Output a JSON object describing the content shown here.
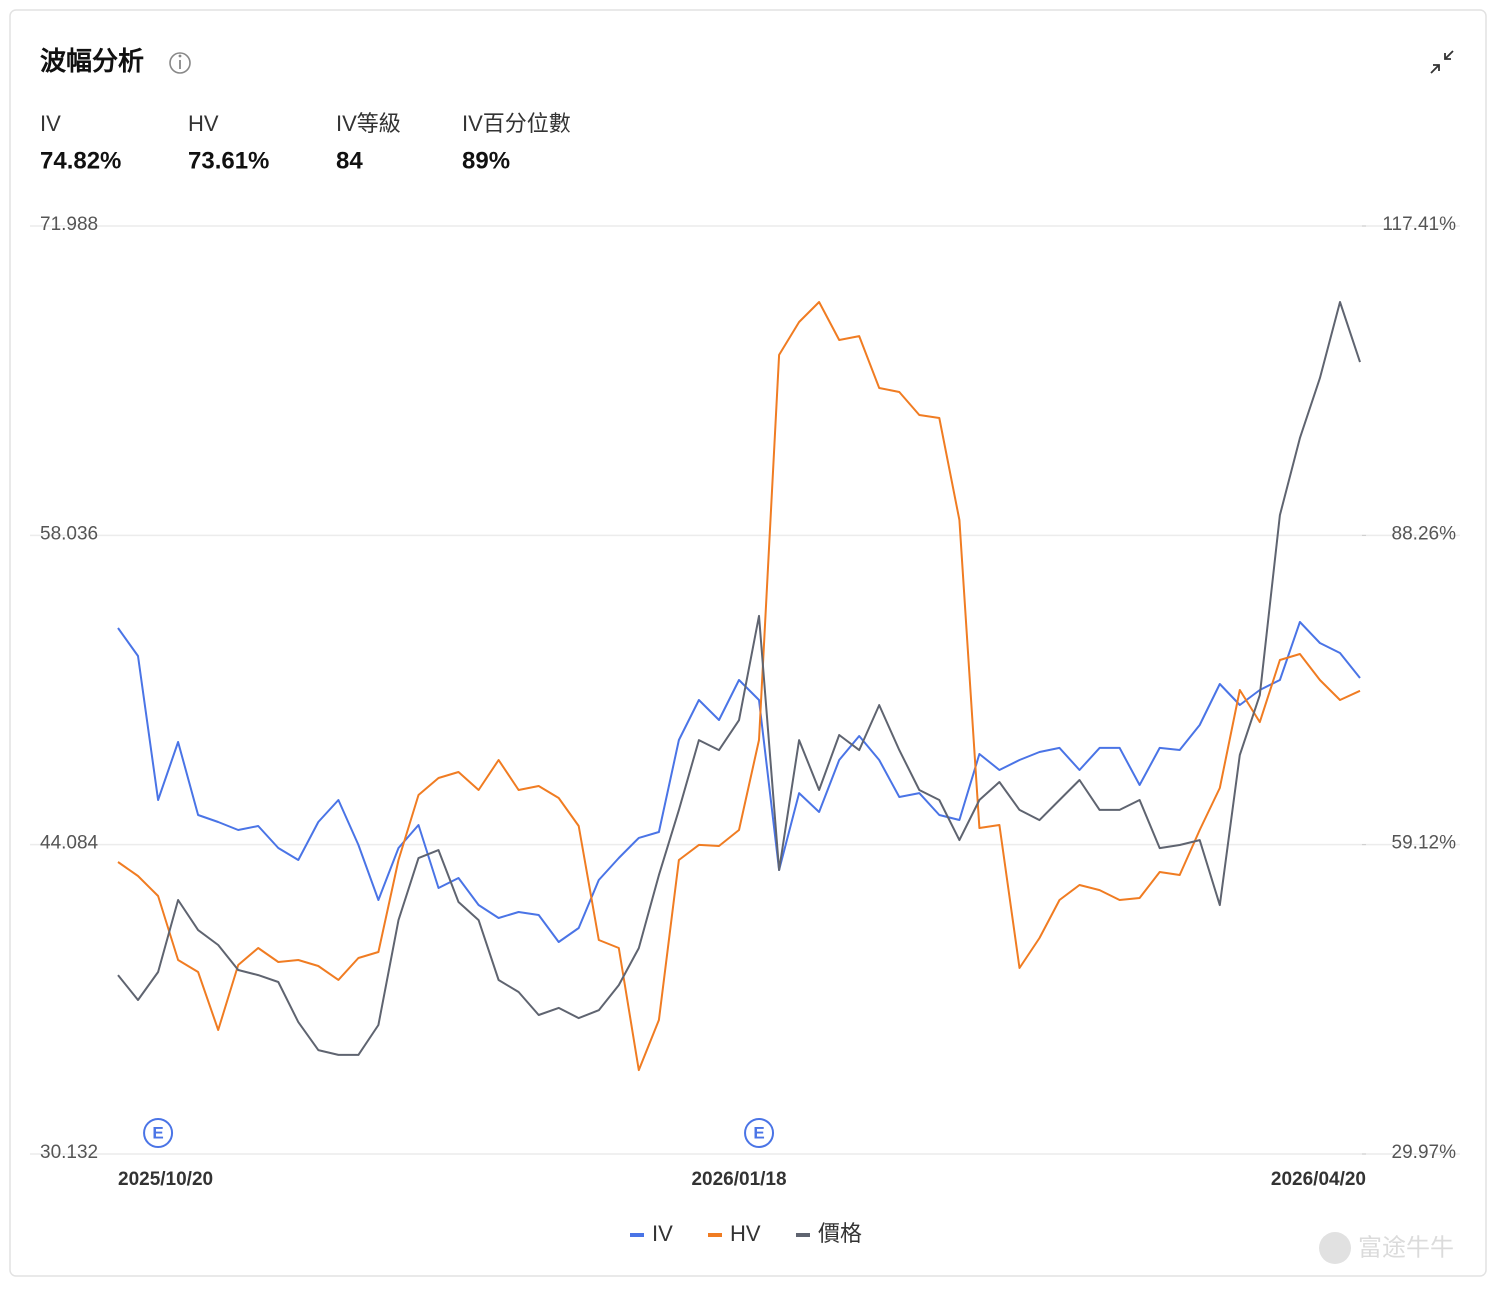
{
  "header": {
    "title": "波幅分析",
    "stats": [
      {
        "label": "IV",
        "value": "74.82%"
      },
      {
        "label": "HV",
        "value": "73.61%"
      },
      {
        "label": "IV等級",
        "value": "84"
      },
      {
        "label": "IV百分位數",
        "value": "89%"
      }
    ]
  },
  "watermark": "富途牛牛",
  "chart_data": {
    "type": "line",
    "categories": [
      "2025/10/20",
      null,
      null,
      null,
      null,
      null,
      null,
      null,
      null,
      null,
      null,
      null,
      null,
      null,
      null,
      null,
      null,
      null,
      null,
      null,
      null,
      null,
      null,
      null,
      null,
      null,
      null,
      null,
      null,
      null,
      null,
      "2026/01/18",
      null,
      null,
      null,
      null,
      null,
      null,
      null,
      null,
      null,
      null,
      null,
      null,
      null,
      null,
      null,
      null,
      null,
      null,
      null,
      null,
      null,
      null,
      null,
      null,
      null,
      null,
      null,
      null,
      null,
      null,
      "2026/04/20"
    ],
    "ylim": [
      30.132,
      71.988
    ],
    "yticks": [
      30.132,
      44.084,
      58.036,
      71.988
    ],
    "y2lim": [
      29.97,
      117.41
    ],
    "y2ticks": [
      {
        "value": 29.97,
        "label": "29.97%"
      },
      {
        "value": 59.12,
        "label": "59.12%"
      },
      {
        "value": 88.26,
        "label": "88.26%"
      },
      {
        "value": 117.41,
        "label": "117.41%"
      }
    ],
    "grid": true,
    "legend": "bottom",
    "annotations": [
      {
        "text": "E",
        "index": 2
      },
      {
        "text": "E",
        "index": 32
      }
    ],
    "series": [
      {
        "name": "IV",
        "color": "#4a74e6",
        "axis": "y2",
        "values": [
          79.53,
          76.89,
          63.33,
          68.79,
          61.91,
          61.25,
          60.5,
          60.88,
          58.8,
          57.67,
          61.25,
          63.33,
          59.09,
          53.9,
          58.8,
          60.97,
          55.03,
          55.98,
          53.43,
          52.21,
          52.77,
          52.49,
          49.95,
          51.26,
          55.79,
          57.86,
          59.75,
          60.31,
          68.98,
          72.75,
          70.86,
          74.63,
          72.75,
          56.73,
          63.98,
          62.19,
          67.09,
          69.36,
          67.09,
          63.61,
          63.98,
          61.91,
          61.44,
          67.66,
          66.15,
          67.09,
          67.85,
          68.23,
          66.15,
          68.23,
          68.23,
          64.74,
          68.23,
          68.04,
          70.39,
          74.26,
          72.28,
          73.69,
          74.63,
          80.1,
          78.12,
          77.18,
          74.82
        ]
      },
      {
        "name": "HV",
        "color": "#f07c22",
        "axis": "y2",
        "values": [
          57.48,
          56.16,
          54.28,
          48.25,
          47.12,
          41.65,
          47.78,
          49.38,
          48.06,
          48.25,
          47.68,
          46.37,
          48.44,
          49.0,
          57.67,
          63.8,
          65.4,
          65.96,
          64.27,
          67.09,
          64.27,
          64.64,
          63.51,
          60.88,
          50.13,
          49.38,
          37.88,
          42.6,
          57.67,
          59.09,
          58.99,
          60.5,
          68.98,
          105.26,
          108.36,
          110.25,
          106.67,
          107.04,
          102.15,
          101.77,
          99.6,
          99.32,
          89.71,
          60.69,
          60.97,
          47.5,
          50.32,
          53.9,
          55.32,
          54.84,
          53.9,
          54.09,
          56.54,
          56.26,
          60.5,
          64.46,
          73.69,
          70.67,
          76.52,
          77.08,
          74.63,
          72.75,
          73.61
        ]
      },
      {
        "name": "價格",
        "color": "#5f6470",
        "axis": "y",
        "values": [
          38.2,
          37.08,
          38.34,
          41.59,
          40.23,
          39.56,
          38.43,
          38.2,
          37.89,
          36.08,
          34.82,
          34.6,
          34.6,
          35.95,
          40.68,
          43.48,
          43.84,
          41.5,
          40.68,
          37.98,
          37.44,
          36.4,
          36.72,
          36.26,
          36.62,
          37.75,
          39.42,
          42.71,
          45.65,
          48.8,
          48.35,
          49.7,
          54.4,
          42.94,
          48.8,
          46.55,
          49.03,
          48.35,
          50.38,
          48.35,
          46.55,
          46.1,
          44.29,
          46.1,
          46.91,
          45.65,
          45.19,
          46.1,
          47.0,
          45.65,
          45.65,
          46.1,
          43.93,
          44.07,
          44.29,
          41.36,
          48.13,
          50.83,
          58.95,
          62.42,
          65.13,
          68.56,
          65.85
        ]
      }
    ]
  }
}
